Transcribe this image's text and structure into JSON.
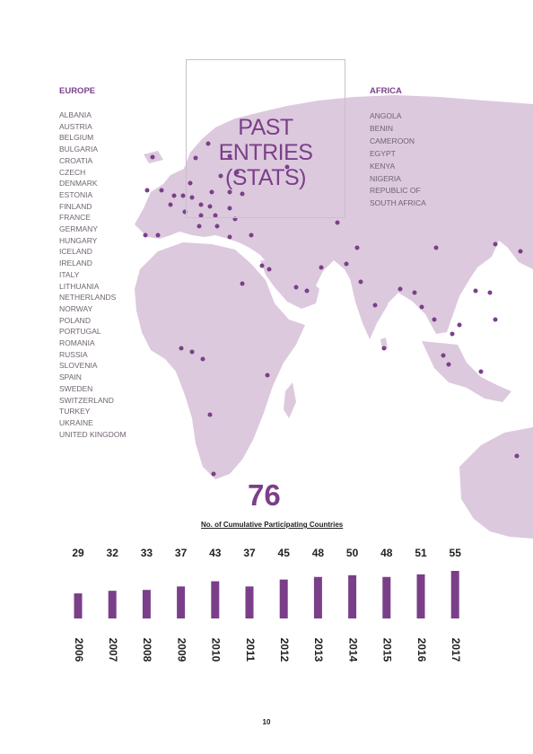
{
  "title": {
    "line1": "PAST ENTRIES",
    "line2": "(STATS)"
  },
  "europe": {
    "heading": "EUROPE",
    "countries": [
      "ALBANIA",
      "AUSTRIA",
      "BELGIUM",
      "BULGARIA",
      "CROATIA",
      "CZECH",
      "DENMARK",
      "ESTONIA",
      "FINLAND",
      "FRANCE",
      "GERMANY",
      "HUNGARY",
      "ICELAND",
      "IRELAND",
      "ITALY",
      "LITHUANIA",
      "NETHERLANDS",
      "NORWAY",
      "POLAND",
      "PORTUGAL",
      "ROMANIA",
      "RUSSIA",
      "SLOVENIA",
      "SPAIN",
      "SWEDEN",
      "SWITZERLAND",
      "TURKEY",
      "UKRAINE",
      "UNITED KINGDOM"
    ]
  },
  "africa": {
    "heading": "AFRICA",
    "countries": [
      "ANGOLA",
      "BENIN",
      "CAMEROON",
      "EGYPT",
      "KENYA",
      "NIGERIA",
      "REPUBLIC OF",
      "SOUTH AFRICA"
    ]
  },
  "total": "76",
  "caption": "No. of Cumulative Participating Countries",
  "chart_data": {
    "type": "bar",
    "categories": [
      "2006",
      "2007",
      "2008",
      "2009",
      "2010",
      "2011",
      "2012",
      "2013",
      "2014",
      "2015",
      "2016",
      "2017"
    ],
    "values": [
      29,
      32,
      33,
      37,
      43,
      37,
      45,
      48,
      50,
      48,
      51,
      55
    ],
    "title": "",
    "xlabel": "",
    "ylabel": "",
    "bar_color": "#7b3f8a"
  },
  "colors": {
    "land": "#dcc9dd",
    "dot": "#7b3f8a",
    "accent": "#7b3f8a"
  },
  "page_number": "10"
}
